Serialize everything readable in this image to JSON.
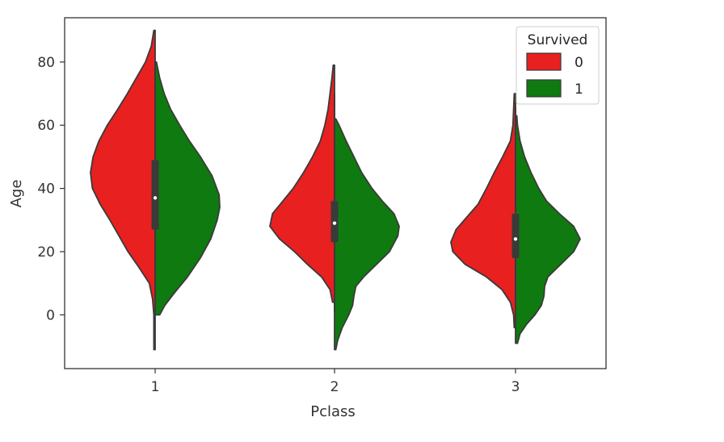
{
  "chart_data": {
    "type": "violin",
    "split": true,
    "xlabel": "Pclass",
    "ylabel": "Age",
    "categories": [
      "1",
      "2",
      "3"
    ],
    "ylim": [
      -17,
      94
    ],
    "yticks": [
      0,
      20,
      40,
      60,
      80
    ],
    "grid": false,
    "legend": {
      "title": "Survived",
      "position": "top-right",
      "entries": [
        {
          "label": "0",
          "color": "#e8201f"
        },
        {
          "label": "1",
          "color": "#0f7a0f"
        }
      ]
    },
    "series": [
      {
        "name": "0",
        "color": "#e8201f",
        "side": "left",
        "violins": [
          {
            "category": "1",
            "min": -11,
            "max": 90,
            "profile": [
              [
                -11,
                0.02
              ],
              [
                0,
                0.02
              ],
              [
                5,
                0.04
              ],
              [
                10,
                0.09
              ],
              [
                15,
                0.25
              ],
              [
                20,
                0.42
              ],
              [
                25,
                0.56
              ],
              [
                30,
                0.7
              ],
              [
                35,
                0.85
              ],
              [
                40,
                0.97
              ],
              [
                45,
                1.0
              ],
              [
                50,
                0.96
              ],
              [
                55,
                0.87
              ],
              [
                60,
                0.74
              ],
              [
                65,
                0.58
              ],
              [
                70,
                0.43
              ],
              [
                75,
                0.29
              ],
              [
                80,
                0.15
              ],
              [
                85,
                0.06
              ],
              [
                90,
                0.02
              ]
            ]
          },
          {
            "category": "2",
            "min": 4,
            "max": 79,
            "profile": [
              [
                4,
                0.03
              ],
              [
                8,
                0.07
              ],
              [
                12,
                0.2
              ],
              [
                16,
                0.42
              ],
              [
                20,
                0.62
              ],
              [
                24,
                0.85
              ],
              [
                28,
                1.0
              ],
              [
                32,
                0.96
              ],
              [
                36,
                0.8
              ],
              [
                40,
                0.64
              ],
              [
                45,
                0.48
              ],
              [
                50,
                0.34
              ],
              [
                55,
                0.22
              ],
              [
                60,
                0.15
              ],
              [
                65,
                0.1
              ],
              [
                70,
                0.07
              ],
              [
                75,
                0.04
              ],
              [
                79,
                0.02
              ]
            ]
          },
          {
            "category": "3",
            "min": -4,
            "max": 70,
            "profile": [
              [
                -4,
                0.02
              ],
              [
                0,
                0.03
              ],
              [
                4,
                0.08
              ],
              [
                8,
                0.21
              ],
              [
                12,
                0.45
              ],
              [
                16,
                0.78
              ],
              [
                20,
                0.97
              ],
              [
                23,
                1.0
              ],
              [
                27,
                0.92
              ],
              [
                31,
                0.75
              ],
              [
                35,
                0.58
              ],
              [
                40,
                0.45
              ],
              [
                45,
                0.33
              ],
              [
                50,
                0.2
              ],
              [
                55,
                0.08
              ],
              [
                60,
                0.04
              ],
              [
                65,
                0.03
              ],
              [
                70,
                0.02
              ]
            ]
          }
        ]
      },
      {
        "name": "1",
        "color": "#0f7a0f",
        "side": "right",
        "violins": [
          {
            "category": "1",
            "min": 0,
            "max": 80,
            "profile": [
              [
                0,
                0.07
              ],
              [
                3,
                0.15
              ],
              [
                7,
                0.3
              ],
              [
                12,
                0.5
              ],
              [
                18,
                0.7
              ],
              [
                24,
                0.86
              ],
              [
                30,
                0.96
              ],
              [
                34,
                1.0
              ],
              [
                38,
                0.99
              ],
              [
                44,
                0.88
              ],
              [
                50,
                0.7
              ],
              [
                55,
                0.53
              ],
              [
                60,
                0.38
              ],
              [
                65,
                0.24
              ],
              [
                70,
                0.14
              ],
              [
                75,
                0.07
              ],
              [
                80,
                0.02
              ]
            ]
          },
          {
            "category": "2",
            "min": -11,
            "max": 62,
            "profile": [
              [
                -11,
                0.02
              ],
              [
                -8,
                0.05
              ],
              [
                -4,
                0.12
              ],
              [
                0,
                0.22
              ],
              [
                3,
                0.28
              ],
              [
                6,
                0.3
              ],
              [
                9,
                0.33
              ],
              [
                12,
                0.45
              ],
              [
                16,
                0.65
              ],
              [
                20,
                0.85
              ],
              [
                25,
                0.98
              ],
              [
                28,
                1.0
              ],
              [
                32,
                0.92
              ],
              [
                36,
                0.74
              ],
              [
                40,
                0.58
              ],
              [
                45,
                0.42
              ],
              [
                50,
                0.3
              ],
              [
                55,
                0.18
              ],
              [
                60,
                0.07
              ],
              [
                62,
                0.02
              ]
            ]
          },
          {
            "category": "3",
            "min": -9,
            "max": 63,
            "profile": [
              [
                -9,
                0.03
              ],
              [
                -6,
                0.07
              ],
              [
                -3,
                0.17
              ],
              [
                0,
                0.3
              ],
              [
                3,
                0.4
              ],
              [
                6,
                0.44
              ],
              [
                9,
                0.45
              ],
              [
                12,
                0.5
              ],
              [
                16,
                0.7
              ],
              [
                20,
                0.9
              ],
              [
                24,
                1.0
              ],
              [
                28,
                0.9
              ],
              [
                32,
                0.68
              ],
              [
                36,
                0.48
              ],
              [
                40,
                0.36
              ],
              [
                45,
                0.24
              ],
              [
                50,
                0.14
              ],
              [
                55,
                0.07
              ],
              [
                60,
                0.03
              ],
              [
                63,
                0.02
              ]
            ]
          }
        ]
      }
    ],
    "boxes": [
      {
        "category": "1",
        "q1": 27,
        "median": 37,
        "q3": 49,
        "whisker_low": 1,
        "whisker_high": 80
      },
      {
        "category": "2",
        "q1": 23,
        "median": 29,
        "q3": 36,
        "whisker_low": 1,
        "whisker_high": 70
      },
      {
        "category": "3",
        "q1": 18,
        "median": 24,
        "q3": 32,
        "whisker_low": 1,
        "whisker_high": 66
      }
    ]
  }
}
